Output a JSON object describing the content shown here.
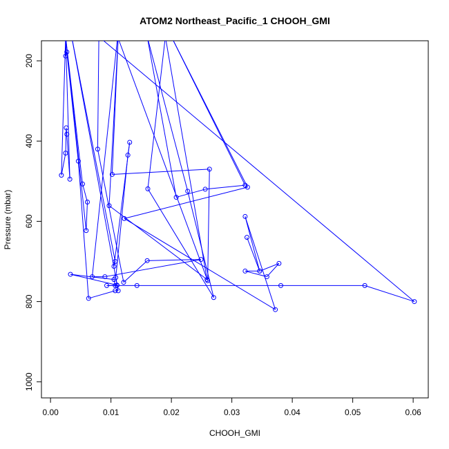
{
  "chart_data": {
    "type": "line",
    "title": "ATOM2 Northeast_Pacific_1 CHOOH_GMI",
    "xlabel": "CHOOH_GMI",
    "ylabel": "Pressure (mbar)",
    "xlim": [
      -0.0015,
      0.0625
    ],
    "ylim": [
      1040,
      150
    ],
    "y_reversed": true,
    "grid": false,
    "legend": "none",
    "x_ticks": [
      0.0,
      0.01,
      0.02,
      0.03,
      0.04,
      0.05,
      0.06
    ],
    "x_tick_labels": [
      "0.00",
      "0.01",
      "0.02",
      "0.03",
      "0.04",
      "0.05",
      "0.06"
    ],
    "y_ticks": [
      200,
      400,
      600,
      800,
      1000
    ],
    "y_tick_labels": [
      "200",
      "400",
      "600",
      "800",
      "1000"
    ],
    "series": [
      {
        "color": "#0000ff",
        "marker": "open-circle",
        "points": [
          [
            0.0025,
            140
          ],
          [
            0.0018,
            485
          ],
          [
            0.0025,
            430
          ],
          [
            0.0026,
            367
          ],
          [
            0.0027,
            383
          ],
          [
            0.0032,
            495
          ],
          [
            0.0025,
            140
          ],
          [
            0.0053,
            507
          ],
          [
            0.0061,
            552
          ],
          [
            0.0059,
            623
          ],
          [
            0.0025,
            140
          ],
          [
            0.0025,
            188
          ],
          [
            0.0027,
            178
          ],
          [
            0.0046,
            450
          ],
          [
            0.0063,
            792
          ],
          [
            0.0107,
            773
          ],
          [
            0.0112,
            773
          ],
          [
            0.0035,
            140
          ],
          [
            0.0107,
            700
          ],
          [
            0.0105,
            712
          ],
          [
            0.0131,
            403
          ],
          [
            0.0128,
            435
          ],
          [
            0.0108,
            740
          ],
          [
            0.011,
            759
          ],
          [
            0.0033,
            732
          ],
          [
            0.0105,
            745
          ],
          [
            0.0107,
            760
          ],
          [
            0.011,
            760
          ],
          [
            0.0093,
            760
          ],
          [
            0.0143,
            760
          ],
          [
            0.0381,
            760
          ],
          [
            0.052,
            760
          ],
          [
            0.0602,
            800
          ],
          [
            0.008,
            140
          ],
          [
            0.0078,
            420
          ],
          [
            0.0121,
            752
          ],
          [
            0.016,
            698
          ],
          [
            0.0249,
            695
          ],
          [
            0.009,
            738
          ],
          [
            0.0069,
            738
          ],
          [
            0.0111,
            140
          ],
          [
            0.026,
            748
          ],
          [
            0.0263,
            470
          ],
          [
            0.0102,
            483
          ],
          [
            0.0112,
            140
          ],
          [
            0.0097,
            561
          ],
          [
            0.0259,
            745
          ],
          [
            0.019,
            140
          ],
          [
            0.0161,
            519
          ],
          [
            0.027,
            790
          ],
          [
            0.0227,
            525
          ],
          [
            0.016,
            140
          ],
          [
            0.0208,
            540
          ],
          [
            0.0256,
            520
          ],
          [
            0.0322,
            510
          ],
          [
            0.02,
            140
          ],
          [
            0.0326,
            515
          ],
          [
            0.0122,
            593
          ],
          [
            0.0372,
            820
          ],
          [
            0.0322,
            588
          ],
          [
            0.0346,
            724
          ],
          [
            0.0378,
            705
          ],
          [
            0.0358,
            738
          ],
          [
            0.0322,
            724
          ],
          [
            0.0346,
            724
          ],
          [
            0.0325,
            640
          ]
        ]
      }
    ]
  }
}
